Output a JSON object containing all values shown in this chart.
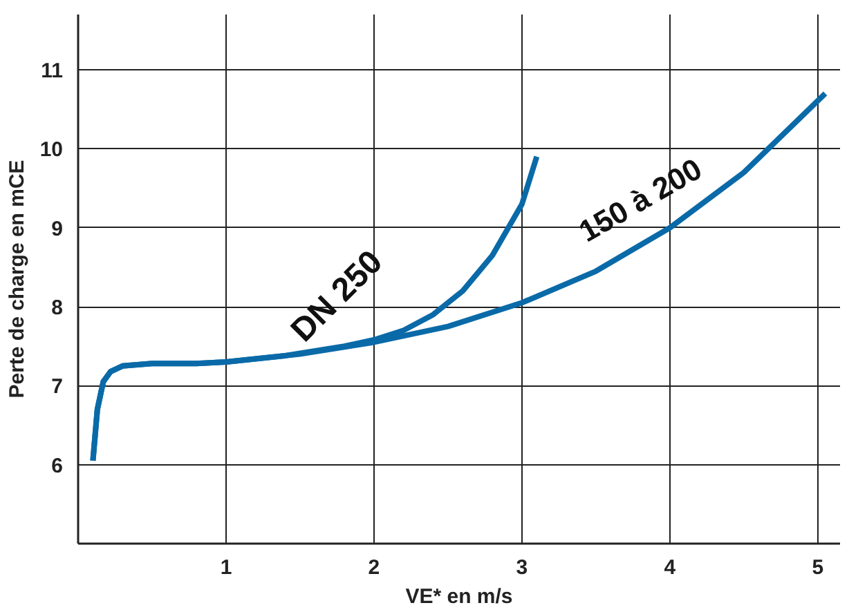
{
  "chart_data": {
    "type": "line",
    "xlabel": "VE* en m/s",
    "ylabel": "Perte de charge en mCE",
    "xlim": [
      0,
      5.15
    ],
    "ylim": [
      5,
      11.7
    ],
    "xticks": [
      1,
      2,
      3,
      4,
      5
    ],
    "yticks": [
      6,
      7,
      8,
      9,
      10,
      11
    ],
    "grid": true,
    "series": [
      {
        "name": "DN 250",
        "color": "#0a6aa8",
        "x": [
          0.1,
          0.13,
          0.17,
          0.22,
          0.3,
          0.5,
          0.8,
          1.0,
          1.4,
          1.8,
          2.0,
          2.2,
          2.4,
          2.6,
          2.8,
          3.0,
          3.1
        ],
        "values": [
          6.05,
          6.7,
          7.05,
          7.18,
          7.25,
          7.28,
          7.28,
          7.3,
          7.38,
          7.5,
          7.58,
          7.7,
          7.9,
          8.2,
          8.65,
          9.3,
          9.9
        ]
      },
      {
        "name": "150 à 200",
        "color": "#0a6aa8",
        "x": [
          0.1,
          0.13,
          0.17,
          0.22,
          0.3,
          0.5,
          0.8,
          1.0,
          1.5,
          2.0,
          2.5,
          3.0,
          3.5,
          4.0,
          4.5,
          5.05
        ],
        "values": [
          6.05,
          6.7,
          7.05,
          7.18,
          7.25,
          7.28,
          7.28,
          7.3,
          7.4,
          7.55,
          7.75,
          8.05,
          8.45,
          9.0,
          9.7,
          10.7
        ]
      }
    ]
  }
}
